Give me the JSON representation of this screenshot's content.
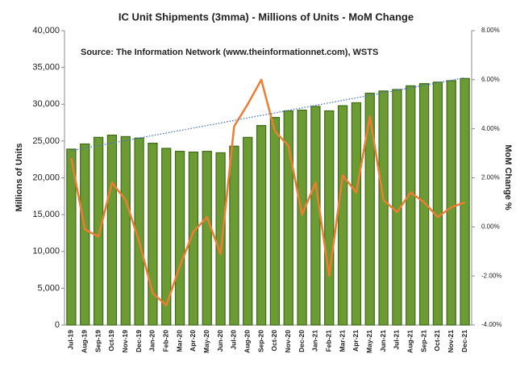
{
  "chart_data": {
    "type": "bar",
    "title": "IC Unit Shipments (3mma) - Millions of Units - MoM Change",
    "subtitle": "Source: The Information Network (www.theinformationnet.com), WSTS",
    "ylabel": "Millions of Units",
    "y2label": "MoM Change %",
    "categories": [
      "Jul-19",
      "Aug-19",
      "Sep-19",
      "Oct-19",
      "Nov-19",
      "Dec-19",
      "Jan-20",
      "Feb-20",
      "Mar-20",
      "Apr-20",
      "May-20",
      "Jun-20",
      "Jul-20",
      "Aug-20",
      "Sep-20",
      "Oct-20",
      "Nov-20",
      "Dec-20",
      "Jan-21",
      "Feb-21",
      "Mar-21",
      "Apr-21",
      "May-21",
      "Jun-21",
      "Jul-21",
      "Aug-21",
      "Sep-21",
      "Oct-21",
      "Nov-21",
      "Dec-21"
    ],
    "series": [
      {
        "type": "bar",
        "color": "#6b9b32",
        "values": [
          23900,
          24600,
          25500,
          25800,
          25600,
          25400,
          24700,
          24000,
          23600,
          23500,
          23600,
          23400,
          24300,
          25500,
          27100,
          28200,
          29100,
          29200,
          29700,
          29100,
          29800,
          30200,
          31500,
          31800,
          32000,
          32500,
          32800,
          33000,
          33200,
          33500
        ]
      },
      {
        "type": "line",
        "axis": "y2",
        "color": "#ed7d31",
        "values": [
          2.8,
          -0.1,
          -0.4,
          1.8,
          1.1,
          -0.6,
          -2.7,
          -3.2,
          -1.6,
          -0.2,
          0.4,
          -1.1,
          4.1,
          5.0,
          6.0,
          3.9,
          3.3,
          0.5,
          1.8,
          -2.0,
          2.1,
          1.4,
          4.5,
          1.1,
          0.6,
          1.4,
          1.0,
          0.4,
          0.8,
          1.0
        ]
      }
    ],
    "trendline": {
      "color": "#4472c4",
      "values": [
        23700,
        33600
      ]
    },
    "ylim": [
      0,
      40000
    ],
    "yticks": [
      0,
      {
        "value": 5000,
        "label": "5,000"
      },
      {
        "value": 10000,
        "label": "10,000"
      },
      {
        "value": 15000,
        "label": "15,000"
      },
      {
        "value": 20000,
        "label": "20,000"
      },
      {
        "value": 25000,
        "label": "25,000"
      },
      {
        "value": 30000,
        "label": "30,000"
      },
      {
        "value": 35000,
        "label": "35,000"
      },
      {
        "value": 40000,
        "label": "40,000"
      }
    ],
    "y2lim": [
      -4,
      8
    ],
    "y2ticks": [
      {
        "value": -4,
        "label": "-4.00%"
      },
      {
        "value": -2,
        "label": "-2.00%"
      },
      {
        "value": 0,
        "label": "0.00%"
      },
      {
        "value": 2,
        "label": "2.00%"
      },
      {
        "value": 4,
        "label": "4.00%"
      },
      {
        "value": 6,
        "label": "6.00%"
      },
      {
        "value": 8,
        "label": "8.00%"
      }
    ]
  }
}
